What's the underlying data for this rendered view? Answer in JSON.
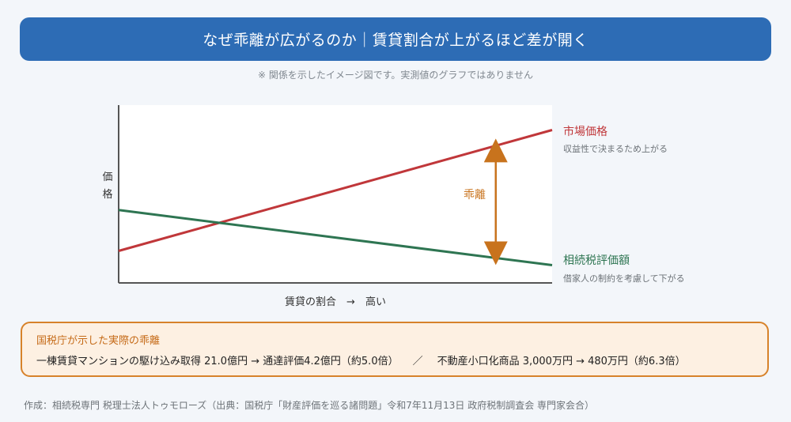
{
  "header": {
    "title": "なぜ乖離が広がるのか｜賃貸割合が上がるほど差が開く",
    "note": "※ 関係を示したイメージ図です。実測値のグラフではありません"
  },
  "chart_data": {
    "type": "line",
    "ylabel_chars": [
      "価",
      "格"
    ],
    "xlabel": "賃貸の割合　→　高い",
    "xlim": [
      0,
      1
    ],
    "ylim": [
      0,
      1
    ],
    "grid": false,
    "series": [
      {
        "name": "市場価格",
        "subtitle": "収益性で決まるため上がる",
        "color": "#c0373a",
        "x": [
          0,
          1
        ],
        "y": [
          0.18,
          0.86
        ]
      },
      {
        "name": "相続税評価額",
        "subtitle": "借家人の制約を考慮して下がる",
        "color": "#2e7552",
        "x": [
          0,
          1
        ],
        "y": [
          0.41,
          0.1
        ]
      }
    ],
    "annotation": {
      "label": "乖離",
      "color": "#c8731d",
      "x": 0.87
    }
  },
  "facts": {
    "title": "国税庁が示した実際の乖離",
    "item1": "一棟賃貸マンションの駆け込み取得 21.0億円 → 通達評価4.2億円（約5.0倍）",
    "separator": "／",
    "item2": "不動産小口化商品 3,000万円 → 480万円（約6.3倍）"
  },
  "footer": "作成：相続税専門 税理士法人トゥモローズ（出典：国税庁「財産評価を巡る諸問題」令和7年11月13日 政府税制調査会 専門家会合）"
}
